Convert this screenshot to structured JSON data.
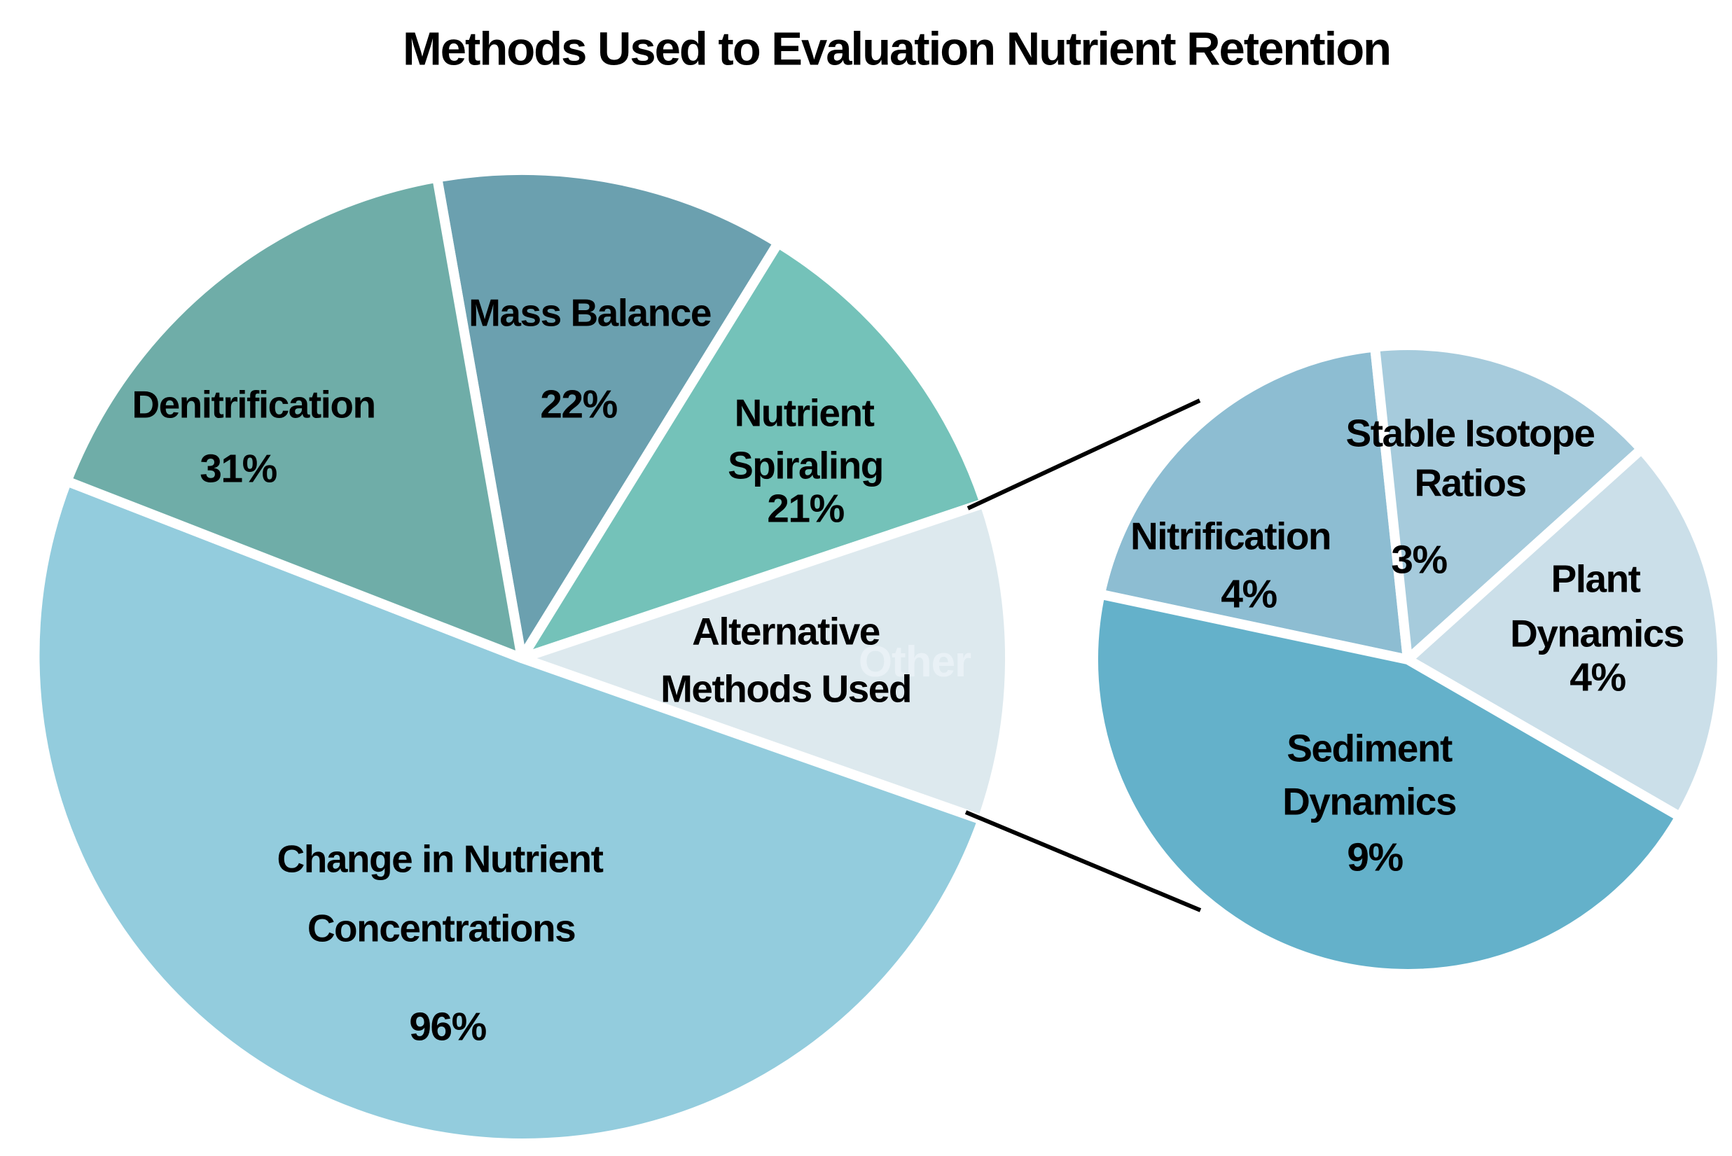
{
  "title": "Methods Used to Evaluation Nutrient Retention",
  "chart_data": {
    "type": "pie",
    "variant": "pie-of-pie",
    "title": "Methods Used to Evaluation Nutrient Retention",
    "legend": "none",
    "main_pie": {
      "slices": [
        {
          "label": "Mass Balance",
          "pct_label": "22%",
          "value": 22,
          "color": "#6ba0af"
        },
        {
          "label": "Nutrient Spiraling",
          "pct_label": "21%",
          "value": 21,
          "color": "#74c2b9"
        },
        {
          "label": "Alternative Methods Used",
          "pct_label": "",
          "value": 20,
          "color": "#dde9ee"
        },
        {
          "label": "Change in Nutrient Concentrations",
          "pct_label": "96%",
          "value": 96,
          "color": "#93ccdd"
        },
        {
          "label": "Denitrification",
          "pct_label": "31%",
          "value": 31,
          "color": "#6fada8"
        }
      ]
    },
    "secondary_pie": {
      "slices": [
        {
          "label": "Nitrification",
          "pct_label": "4%",
          "value": 4,
          "color": "#8dbdd2"
        },
        {
          "label": "Stable Isotope Ratios",
          "pct_label": "3%",
          "value": 3,
          "color": "#a6cbdc"
        },
        {
          "label": "Plant Dynamics",
          "pct_label": "4%",
          "value": 4,
          "color": "#cbdfe9"
        },
        {
          "label": "Sediment Dynamics",
          "pct_label": "9%",
          "value": 9,
          "color": "#64b1ca"
        }
      ]
    },
    "ghost_label": "Other",
    "connector_color": "#000000"
  },
  "labels": {
    "mass_balance": {
      "line1": "Mass Balance",
      "pct": "22%"
    },
    "denitrification": {
      "line1": "Denitrification",
      "pct": "31%"
    },
    "nutrient_spiraling": {
      "line1": "Nutrient",
      "line2": "Spiraling",
      "pct": "21%"
    },
    "alternative": {
      "line1": "Alternative",
      "line2": "Methods Used"
    },
    "change": {
      "line1": "Change in Nutrient",
      "line2": "Concentrations",
      "pct": "96%"
    },
    "nitrification": {
      "line1": "Nitrification",
      "pct": "4%"
    },
    "stable_isotope": {
      "line1": "Stable Isotope",
      "line2": "Ratios",
      "pct": "3%"
    },
    "plant_dynamics": {
      "line1": "Plant",
      "line2": "Dynamics",
      "pct": "4%"
    },
    "sediment_dynamics": {
      "line1": "Sediment",
      "line2": "Dynamics",
      "pct": "9%"
    }
  }
}
